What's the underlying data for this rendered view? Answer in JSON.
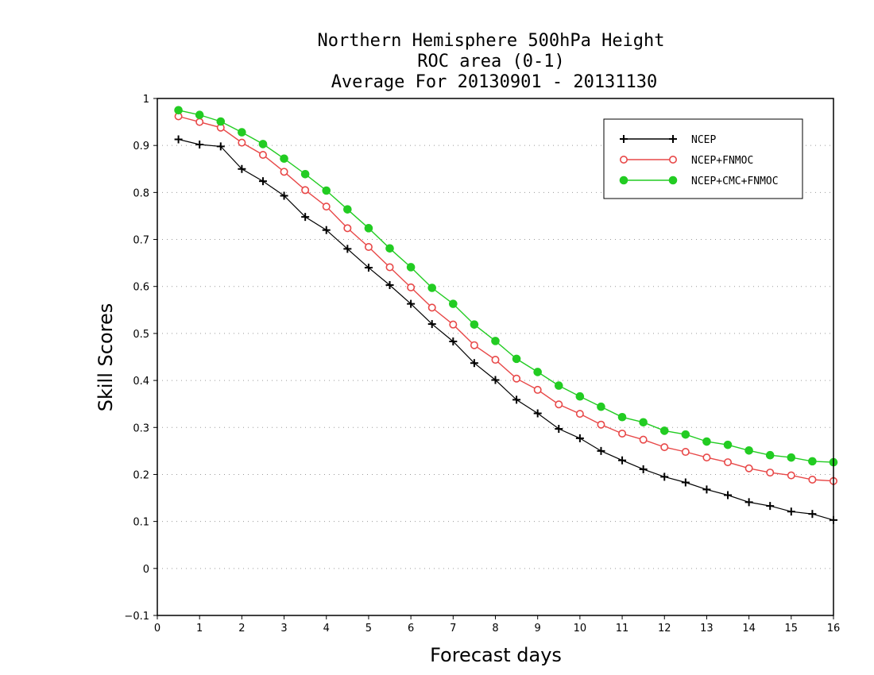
{
  "chart_data": {
    "type": "line",
    "title": [
      "Northern Hemisphere 500hPa Height",
      "ROC area (0-1)",
      "Average For 20130901 - 20131130"
    ],
    "xlabel": "Forecast days",
    "ylabel": "Skill Scores",
    "xlim": [
      0,
      16
    ],
    "ylim": [
      -0.1,
      1
    ],
    "xticks": [
      "0",
      "1",
      "2",
      "3",
      "4",
      "5",
      "6",
      "7",
      "8",
      "9",
      "10",
      "11",
      "12",
      "13",
      "14",
      "15",
      "16"
    ],
    "yticks": [
      "−0.1",
      "0",
      "0.1",
      "0.2",
      "0.3",
      "0.4",
      "0.5",
      "0.6",
      "0.7",
      "0.8",
      "0.9",
      "1"
    ],
    "grid": true,
    "legend_position": "top-right",
    "x": [
      0.5,
      1,
      1.5,
      2,
      2.5,
      3,
      3.5,
      4,
      4.5,
      5,
      5.5,
      6,
      6.5,
      7,
      7.5,
      8,
      8.5,
      9,
      9.5,
      10,
      10.5,
      11,
      11.5,
      12,
      12.5,
      13,
      13.5,
      14,
      14.5,
      15,
      15.5,
      16
    ],
    "series": [
      {
        "name": "NCEP",
        "color": "#000000",
        "marker": "plus",
        "values": [
          0.913,
          0.902,
          0.898,
          0.85,
          0.824,
          0.793,
          0.748,
          0.72,
          0.68,
          0.64,
          0.603,
          0.563,
          0.52,
          0.483,
          0.437,
          0.401,
          0.359,
          0.33,
          0.297,
          0.277,
          0.25,
          0.23,
          0.211,
          0.195,
          0.183,
          0.168,
          0.156,
          0.141,
          0.133,
          0.121,
          0.116,
          0.103
        ]
      },
      {
        "name": "NCEP+FNMOC",
        "color": "#e84848",
        "marker": "open-circle",
        "values": [
          0.962,
          0.95,
          0.938,
          0.906,
          0.88,
          0.844,
          0.805,
          0.77,
          0.724,
          0.684,
          0.641,
          0.598,
          0.555,
          0.519,
          0.475,
          0.444,
          0.404,
          0.38,
          0.349,
          0.329,
          0.306,
          0.287,
          0.274,
          0.258,
          0.248,
          0.236,
          0.226,
          0.213,
          0.204,
          0.198,
          0.189,
          0.186
        ]
      },
      {
        "name": "NCEP+CMC+FNMOC",
        "color": "#22cc22",
        "marker": "filled-circle",
        "values": [
          0.975,
          0.965,
          0.951,
          0.928,
          0.903,
          0.872,
          0.839,
          0.804,
          0.764,
          0.724,
          0.681,
          0.641,
          0.597,
          0.563,
          0.519,
          0.484,
          0.446,
          0.418,
          0.389,
          0.366,
          0.344,
          0.322,
          0.311,
          0.293,
          0.285,
          0.27,
          0.263,
          0.251,
          0.241,
          0.236,
          0.228,
          0.226
        ]
      }
    ]
  }
}
